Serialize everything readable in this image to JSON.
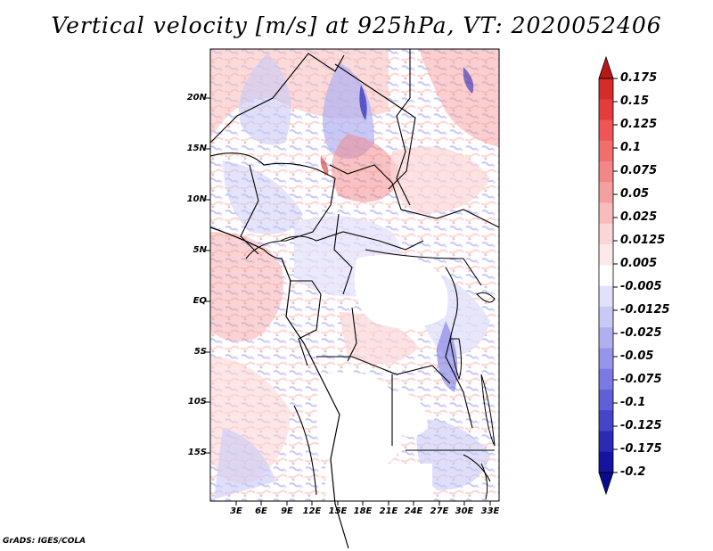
{
  "title": "Vertical velocity [m/s] at 925hPa, VT: 2020052406",
  "credit": "GrADS: IGES/COLA",
  "map": {
    "lat_labels": [
      "20N",
      "15N",
      "10N",
      "5N",
      "EQ",
      "5S",
      "10S",
      "15S"
    ],
    "lon_labels": [
      "3E",
      "6E",
      "9E",
      "12E",
      "15E",
      "18E",
      "21E",
      "24E",
      "27E",
      "30E",
      "33E"
    ],
    "lon_range": [
      0,
      34
    ],
    "lat_range": [
      -20,
      25
    ]
  },
  "colorbar": {
    "levels": [
      "0.175",
      "0.15",
      "0.125",
      "0.1",
      "0.075",
      "0.05",
      "0.025",
      "0.0125",
      "0.005",
      "-0.005",
      "-0.0125",
      "-0.025",
      "-0.05",
      "-0.075",
      "-0.1",
      "-0.125",
      "-0.175",
      "-0.2"
    ],
    "colors": [
      "#d72a2a",
      "#e43c3c",
      "#f05555",
      "#f26d6d",
      "#f38686",
      "#f5a0a0",
      "#f8bcbc",
      "#fbd6d6",
      "#fde9e9",
      "#ffffff",
      "#e1e1fb",
      "#c9c9f6",
      "#b0b0f1",
      "#9595ea",
      "#7a7ae2",
      "#5f5fd8",
      "#4545c9",
      "#2a2ab4",
      "#1414a0"
    ],
    "top_color": "#b81818",
    "bottom_color": "#0a0a8c"
  }
}
